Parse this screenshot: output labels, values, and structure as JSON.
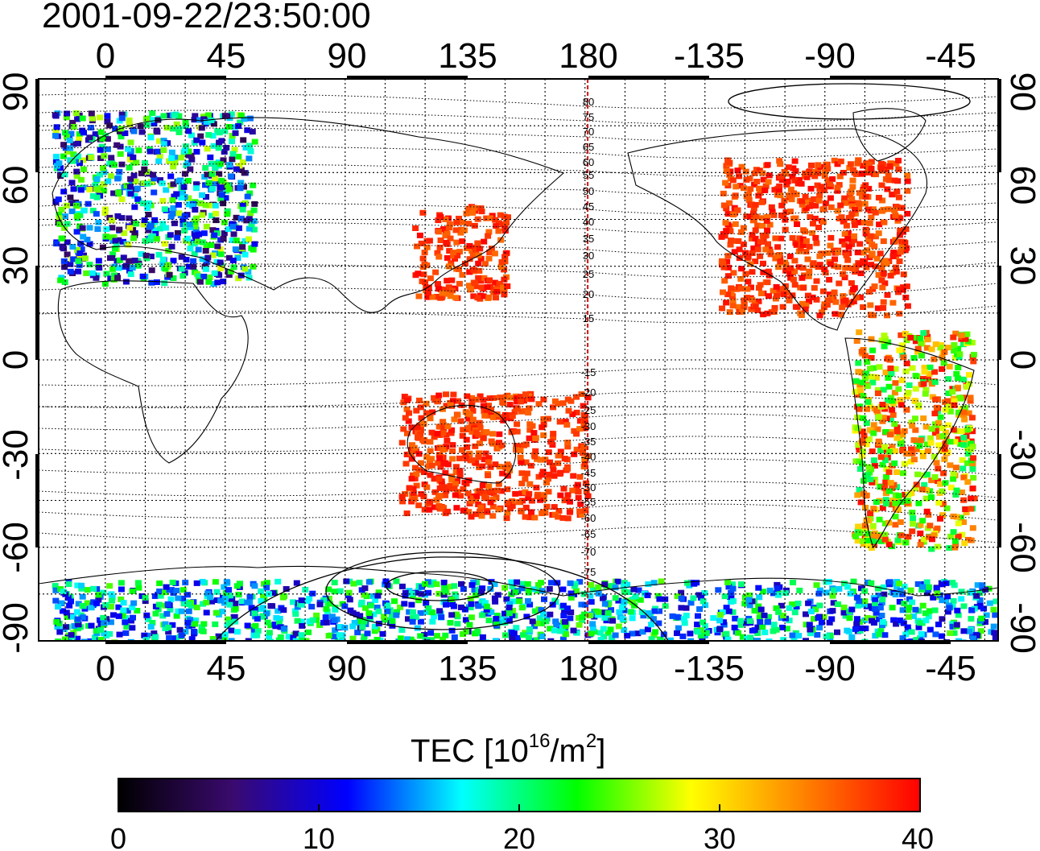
{
  "title": "2001-09-22/23:50:00",
  "map": {
    "top_lon_labels": [
      "0",
      "45",
      "90",
      "135",
      "180",
      "-135",
      "-90",
      "-45"
    ],
    "bottom_lon_labels": [
      "0",
      "45",
      "90",
      "135",
      "180",
      "-135",
      "-90",
      "-45"
    ],
    "left_lat_labels": [
      "90",
      "60",
      "30",
      "0",
      "-30",
      "-60",
      "-90"
    ],
    "right_lat_labels": [
      "90",
      "60",
      "30",
      "0",
      "-30",
      "-60",
      "-90"
    ],
    "contour_labels_north": [
      "80",
      "75",
      "70",
      "65",
      "60",
      "55",
      "50",
      "45",
      "40",
      "35",
      "30",
      "25",
      "20",
      "15"
    ],
    "contour_labels_south": [
      "-15",
      "-20",
      "-25",
      "-30",
      "-35",
      "-40",
      "-45",
      "-50",
      "-55",
      "-60",
      "-65",
      "-70",
      "-75"
    ],
    "terminator_longitude": 181,
    "terminator_color": "#dd1111",
    "extent": {
      "lon_start": -25,
      "lon_end": 335,
      "lat_min": -90,
      "lat_max": 90
    }
  },
  "colorbar": {
    "title_main": "TEC  [10",
    "title_sup1": "16",
    "title_mid": "/m",
    "title_sup2": "2",
    "title_end": "]",
    "tick_labels": [
      "0",
      "10",
      "20",
      "30",
      "40"
    ],
    "min": 0,
    "max": 40,
    "colors": [
      "#000000",
      "#3a0a6e",
      "#0000ff",
      "#00ffff",
      "#00ff00",
      "#ffff00",
      "#ff8000",
      "#ff0000"
    ]
  },
  "chart_data": {
    "type": "heatmap",
    "title": "2001-09-22/23:50:00",
    "variable": "TEC",
    "unit": "10^16/m^2",
    "value_range": [
      0,
      40
    ],
    "xlabel": "",
    "ylabel": "",
    "x_ticks": [
      "0",
      "45",
      "90",
      "135",
      "180",
      "-135",
      "-90",
      "-45"
    ],
    "y_ticks": [
      "90",
      "60",
      "30",
      "0",
      "-30",
      "-60",
      "-90"
    ],
    "regions": [
      {
        "lon": [
          -20,
          55
        ],
        "lat": [
          25,
          80
        ],
        "tec_range": [
          4,
          28
        ]
      },
      {
        "lon": [
          115,
          150
        ],
        "lat": [
          20,
          50
        ],
        "tec_range": [
          35,
          40
        ]
      },
      {
        "lon": [
          -130,
          -60
        ],
        "lat": [
          15,
          65
        ],
        "tec_range": [
          35,
          40
        ]
      },
      {
        "lon": [
          -80,
          -35
        ],
        "lat": [
          -60,
          10
        ],
        "tec_range": [
          20,
          40
        ]
      },
      {
        "lon": [
          110,
          180
        ],
        "lat": [
          -50,
          -10
        ],
        "tec_range": [
          35,
          40
        ]
      },
      {
        "lon": [
          -20,
          335
        ],
        "lat": [
          -90,
          -70
        ],
        "tec_range": [
          8,
          25
        ]
      }
    ]
  }
}
